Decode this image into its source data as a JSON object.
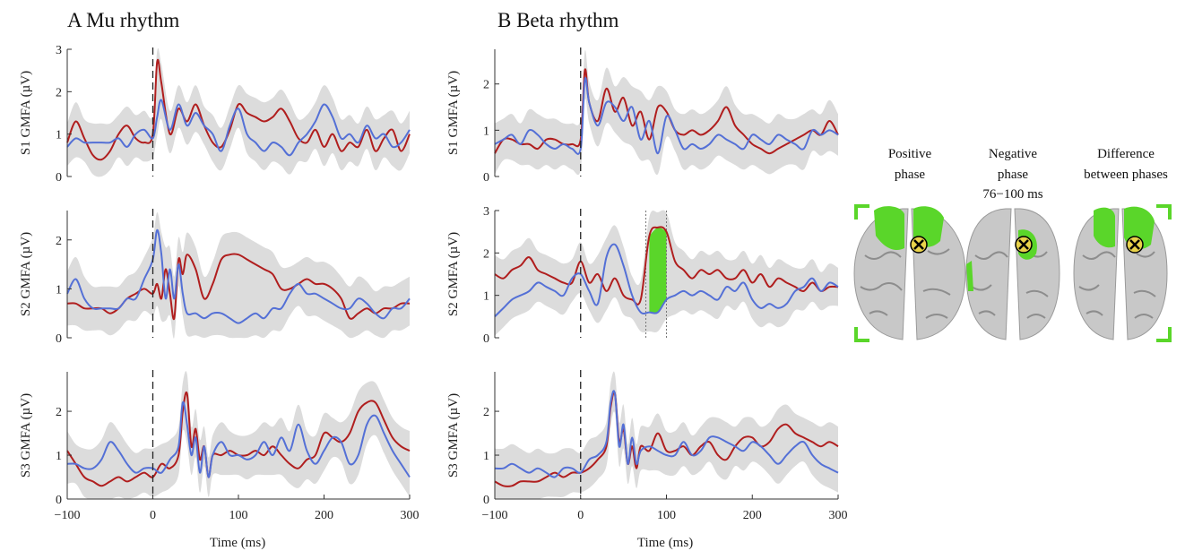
{
  "panel_titles": [
    "A Mu rhythm",
    "B Beta rhythm"
  ],
  "x_axis_label": "Time (ms)",
  "brain_labels": {
    "positive": [
      "Positive",
      "phase"
    ],
    "negative": [
      "Negative",
      "phase"
    ],
    "window": "76−100 ms",
    "difference": [
      "Difference",
      "between phases"
    ]
  },
  "colors": {
    "red_series": "#b01e1e",
    "blue_series": "#5470d6",
    "ci_band": "#dcdcdc",
    "highlight": "#5ad62a"
  },
  "chart_data": [
    {
      "type": "line",
      "panel": "A",
      "row": "S1",
      "ylabel": "S1 GMFA (µV)",
      "xlim": [
        -100,
        300
      ],
      "ylim": [
        0,
        3
      ],
      "xticks": [
        -100,
        0,
        100,
        200,
        300
      ],
      "yticks": [
        0,
        1,
        2,
        3
      ],
      "x": [
        -100,
        -90,
        -80,
        -70,
        -60,
        -50,
        -40,
        -30,
        -20,
        -10,
        0,
        5,
        10,
        20,
        30,
        40,
        50,
        60,
        70,
        80,
        90,
        100,
        110,
        120,
        130,
        140,
        150,
        160,
        170,
        180,
        190,
        200,
        210,
        220,
        230,
        240,
        250,
        260,
        270,
        280,
        290,
        300
      ],
      "series": [
        {
          "values": [
            0.8,
            1.3,
            0.9,
            0.5,
            0.4,
            0.6,
            1.0,
            1.2,
            0.9,
            0.8,
            1.0,
            2.7,
            2.2,
            1.0,
            1.6,
            1.3,
            1.7,
            1.2,
            0.8,
            0.7,
            1.1,
            1.7,
            1.5,
            1.4,
            1.3,
            1.4,
            1.6,
            1.3,
            0.9,
            0.8,
            1.1,
            0.7,
            1.0,
            0.6,
            0.8,
            0.7,
            1.1,
            0.6,
            0.9,
            1.1,
            0.6,
            1.0
          ]
        },
        {
          "values": [
            0.7,
            0.9,
            0.8,
            0.8,
            0.8,
            0.8,
            0.9,
            0.7,
            1.0,
            1.1,
            0.9,
            1.4,
            1.8,
            1.1,
            1.7,
            1.2,
            1.5,
            1.2,
            1.0,
            0.6,
            1.2,
            1.6,
            1.0,
            0.8,
            0.6,
            0.8,
            0.7,
            0.5,
            0.8,
            1.0,
            1.3,
            1.7,
            1.4,
            0.9,
            1.0,
            0.8,
            1.2,
            0.9,
            1.0,
            0.7,
            0.8,
            1.1
          ]
        }
      ]
    },
    {
      "type": "line",
      "panel": "A",
      "row": "S2",
      "ylabel": "S2 GMFA (µV)",
      "xlim": [
        -100,
        300
      ],
      "ylim": [
        0,
        2.6
      ],
      "xticks": [
        -100,
        0,
        100,
        200,
        300
      ],
      "yticks": [
        0,
        1,
        2
      ],
      "x": [
        -100,
        -90,
        -80,
        -70,
        -60,
        -50,
        -40,
        -30,
        -20,
        -10,
        0,
        5,
        10,
        15,
        20,
        25,
        30,
        35,
        40,
        50,
        60,
        70,
        80,
        90,
        100,
        110,
        120,
        130,
        140,
        150,
        160,
        170,
        180,
        190,
        200,
        210,
        220,
        230,
        240,
        250,
        260,
        270,
        280,
        290,
        300
      ],
      "series": [
        {
          "values": [
            0.7,
            0.7,
            0.6,
            0.6,
            0.6,
            0.5,
            0.6,
            0.8,
            0.9,
            1.0,
            0.9,
            1.1,
            0.8,
            1.4,
            0.9,
            0.4,
            1.6,
            1.3,
            1.7,
            1.4,
            0.8,
            1.1,
            1.6,
            1.7,
            1.7,
            1.6,
            1.5,
            1.4,
            1.3,
            1.0,
            1.0,
            1.1,
            1.2,
            1.1,
            1.1,
            1.0,
            0.8,
            0.4,
            0.5,
            0.6,
            0.5,
            0.6,
            0.6,
            0.7,
            0.7
          ]
        },
        {
          "values": [
            0.9,
            1.2,
            0.8,
            0.6,
            0.6,
            0.6,
            0.6,
            0.8,
            0.8,
            1.2,
            1.6,
            2.2,
            1.7,
            0.8,
            1.4,
            0.8,
            1.5,
            0.9,
            0.5,
            0.5,
            0.4,
            0.5,
            0.5,
            0.4,
            0.3,
            0.4,
            0.5,
            0.4,
            0.6,
            0.6,
            0.9,
            1.1,
            0.9,
            0.9,
            0.8,
            0.7,
            0.6,
            0.6,
            0.8,
            0.7,
            0.5,
            0.4,
            0.6,
            0.6,
            0.8
          ]
        }
      ]
    },
    {
      "type": "line",
      "panel": "A",
      "row": "S3",
      "ylabel": "S3 GMFA (µV)",
      "xlim": [
        -100,
        300
      ],
      "ylim": [
        0,
        2.9
      ],
      "xticks": [
        -100,
        0,
        100,
        200,
        300
      ],
      "yticks": [
        0,
        1,
        2
      ],
      "x": [
        -100,
        -90,
        -80,
        -70,
        -60,
        -50,
        -40,
        -30,
        -20,
        -10,
        0,
        10,
        20,
        30,
        35,
        40,
        45,
        50,
        55,
        60,
        65,
        70,
        80,
        90,
        100,
        110,
        120,
        130,
        140,
        150,
        160,
        170,
        180,
        190,
        200,
        210,
        220,
        230,
        240,
        250,
        260,
        270,
        280,
        290,
        300
      ],
      "series": [
        {
          "values": [
            1.1,
            0.8,
            0.5,
            0.4,
            0.3,
            0.4,
            0.5,
            0.4,
            0.5,
            0.6,
            0.5,
            0.8,
            0.7,
            1.0,
            2.0,
            2.4,
            1.2,
            1.6,
            0.9,
            1.2,
            0.5,
            1.0,
            1.0,
            1.1,
            1.0,
            1.0,
            1.1,
            1.0,
            1.2,
            1.0,
            0.8,
            0.7,
            0.9,
            1.0,
            1.5,
            1.4,
            1.3,
            1.5,
            2.0,
            2.2,
            2.2,
            1.8,
            1.4,
            1.2,
            1.1
          ]
        },
        {
          "values": [
            0.8,
            0.8,
            0.7,
            0.7,
            0.9,
            1.3,
            1.1,
            0.8,
            0.6,
            0.7,
            0.7,
            0.6,
            0.9,
            1.2,
            2.2,
            1.7,
            1.0,
            1.4,
            0.6,
            1.2,
            0.5,
            1.0,
            1.3,
            1.0,
            1.0,
            0.9,
            1.0,
            1.3,
            1.0,
            1.4,
            1.1,
            1.7,
            1.1,
            0.8,
            1.1,
            1.4,
            1.3,
            0.8,
            1.0,
            1.7,
            1.9,
            1.5,
            1.1,
            0.8,
            0.5
          ]
        }
      ]
    },
    {
      "type": "line",
      "panel": "B",
      "row": "S1",
      "ylabel": "S1 GMFA (µV)",
      "xlim": [
        -100,
        300
      ],
      "ylim": [
        0,
        2.75
      ],
      "xticks": [
        -100,
        0,
        100,
        200,
        300
      ],
      "yticks": [
        0,
        1,
        2
      ],
      "x": [
        -100,
        -90,
        -80,
        -70,
        -60,
        -50,
        -40,
        -30,
        -20,
        -10,
        0,
        5,
        10,
        20,
        30,
        40,
        50,
        60,
        70,
        80,
        90,
        100,
        110,
        120,
        130,
        140,
        150,
        160,
        170,
        180,
        190,
        200,
        210,
        220,
        230,
        240,
        250,
        260,
        270,
        280,
        290,
        300
      ],
      "series": [
        {
          "values": [
            0.5,
            0.8,
            0.8,
            0.7,
            0.7,
            0.6,
            0.8,
            0.8,
            0.7,
            0.7,
            0.8,
            2.3,
            1.6,
            1.2,
            1.9,
            1.4,
            1.7,
            1.1,
            1.4,
            0.8,
            1.5,
            1.4,
            1.0,
            0.9,
            1.0,
            0.9,
            1.0,
            1.2,
            1.5,
            1.1,
            0.9,
            0.7,
            0.6,
            0.5,
            0.6,
            0.7,
            0.8,
            0.9,
            1.0,
            0.9,
            1.2,
            0.9
          ]
        },
        {
          "values": [
            0.7,
            0.8,
            0.9,
            0.7,
            1.0,
            0.9,
            0.7,
            0.6,
            0.7,
            0.6,
            0.6,
            2.1,
            1.6,
            1.1,
            1.6,
            1.5,
            1.2,
            1.5,
            0.8,
            1.2,
            0.5,
            1.3,
            1.0,
            0.6,
            0.7,
            0.6,
            0.7,
            0.9,
            0.8,
            0.7,
            0.6,
            0.9,
            0.8,
            0.7,
            0.9,
            0.8,
            0.7,
            0.6,
            1.0,
            0.9,
            1.0,
            0.9
          ]
        }
      ]
    },
    {
      "type": "line",
      "panel": "B",
      "row": "S2",
      "ylabel": "S2 GMFA (µV)",
      "xlim": [
        -100,
        300
      ],
      "ylim": [
        0,
        3
      ],
      "xticks": [
        -100,
        0,
        100,
        200,
        300
      ],
      "yticks": [
        0,
        1,
        2,
        3
      ],
      "highlight_window_ms": [
        76,
        100
      ],
      "x": [
        -100,
        -90,
        -80,
        -70,
        -60,
        -50,
        -40,
        -30,
        -20,
        -10,
        0,
        10,
        20,
        30,
        40,
        50,
        60,
        70,
        80,
        90,
        100,
        110,
        120,
        130,
        140,
        150,
        160,
        170,
        180,
        190,
        200,
        210,
        220,
        230,
        240,
        250,
        260,
        270,
        280,
        290,
        300
      ],
      "series": [
        {
          "values": [
            1.5,
            1.4,
            1.6,
            1.7,
            1.9,
            1.6,
            1.5,
            1.4,
            1.3,
            1.3,
            1.8,
            1.3,
            1.5,
            1.1,
            1.4,
            1.0,
            0.9,
            0.9,
            2.4,
            2.6,
            2.5,
            1.8,
            1.6,
            1.4,
            1.6,
            1.5,
            1.6,
            1.4,
            1.4,
            1.6,
            1.3,
            1.5,
            1.2,
            1.4,
            1.3,
            1.2,
            1.1,
            1.3,
            1.1,
            1.2,
            1.2
          ]
        },
        {
          "values": [
            0.5,
            0.7,
            0.9,
            1.0,
            1.1,
            1.3,
            1.2,
            1.1,
            1.0,
            1.4,
            1.5,
            1.1,
            0.8,
            1.9,
            2.2,
            1.7,
            1.0,
            0.6,
            0.6,
            0.6,
            0.9,
            1.0,
            1.1,
            1.0,
            1.1,
            1.0,
            0.9,
            1.2,
            1.1,
            1.3,
            0.9,
            0.7,
            0.8,
            0.7,
            0.8,
            1.1,
            1.2,
            1.4,
            1.1,
            1.3,
            1.2
          ]
        }
      ]
    },
    {
      "type": "line",
      "panel": "B",
      "row": "S3",
      "ylabel": "S3 GMFA (µV)",
      "xlim": [
        -100,
        300
      ],
      "ylim": [
        0,
        2.9
      ],
      "xticks": [
        -100,
        0,
        100,
        200,
        300
      ],
      "yticks": [
        0,
        1,
        2
      ],
      "x": [
        -100,
        -90,
        -80,
        -70,
        -60,
        -50,
        -40,
        -30,
        -20,
        -10,
        0,
        10,
        20,
        30,
        35,
        40,
        45,
        50,
        55,
        60,
        65,
        70,
        80,
        90,
        100,
        110,
        120,
        130,
        140,
        150,
        160,
        170,
        180,
        190,
        200,
        210,
        220,
        230,
        240,
        250,
        260,
        270,
        280,
        290,
        300
      ],
      "series": [
        {
          "values": [
            0.4,
            0.3,
            0.3,
            0.4,
            0.4,
            0.4,
            0.5,
            0.6,
            0.5,
            0.6,
            0.6,
            0.7,
            0.9,
            1.2,
            2.1,
            2.4,
            1.3,
            1.6,
            0.8,
            1.2,
            0.7,
            1.2,
            1.1,
            1.5,
            1.1,
            1.1,
            1.2,
            1.0,
            1.2,
            1.3,
            1.0,
            0.9,
            1.2,
            1.4,
            1.4,
            1.2,
            1.3,
            1.6,
            1.7,
            1.5,
            1.4,
            1.3,
            1.2,
            1.3,
            1.2
          ]
        },
        {
          "values": [
            0.7,
            0.7,
            0.8,
            0.7,
            0.6,
            0.7,
            0.6,
            0.5,
            0.7,
            0.7,
            0.6,
            0.9,
            1.0,
            1.3,
            2.2,
            2.4,
            1.2,
            1.7,
            0.8,
            1.4,
            0.8,
            1.1,
            1.2,
            1.1,
            1.0,
            1.0,
            1.3,
            1.0,
            1.1,
            1.4,
            1.4,
            1.3,
            1.2,
            1.1,
            1.3,
            1.2,
            1.0,
            0.8,
            1.0,
            1.2,
            1.3,
            1.0,
            0.8,
            0.7,
            0.6
          ]
        }
      ]
    }
  ]
}
